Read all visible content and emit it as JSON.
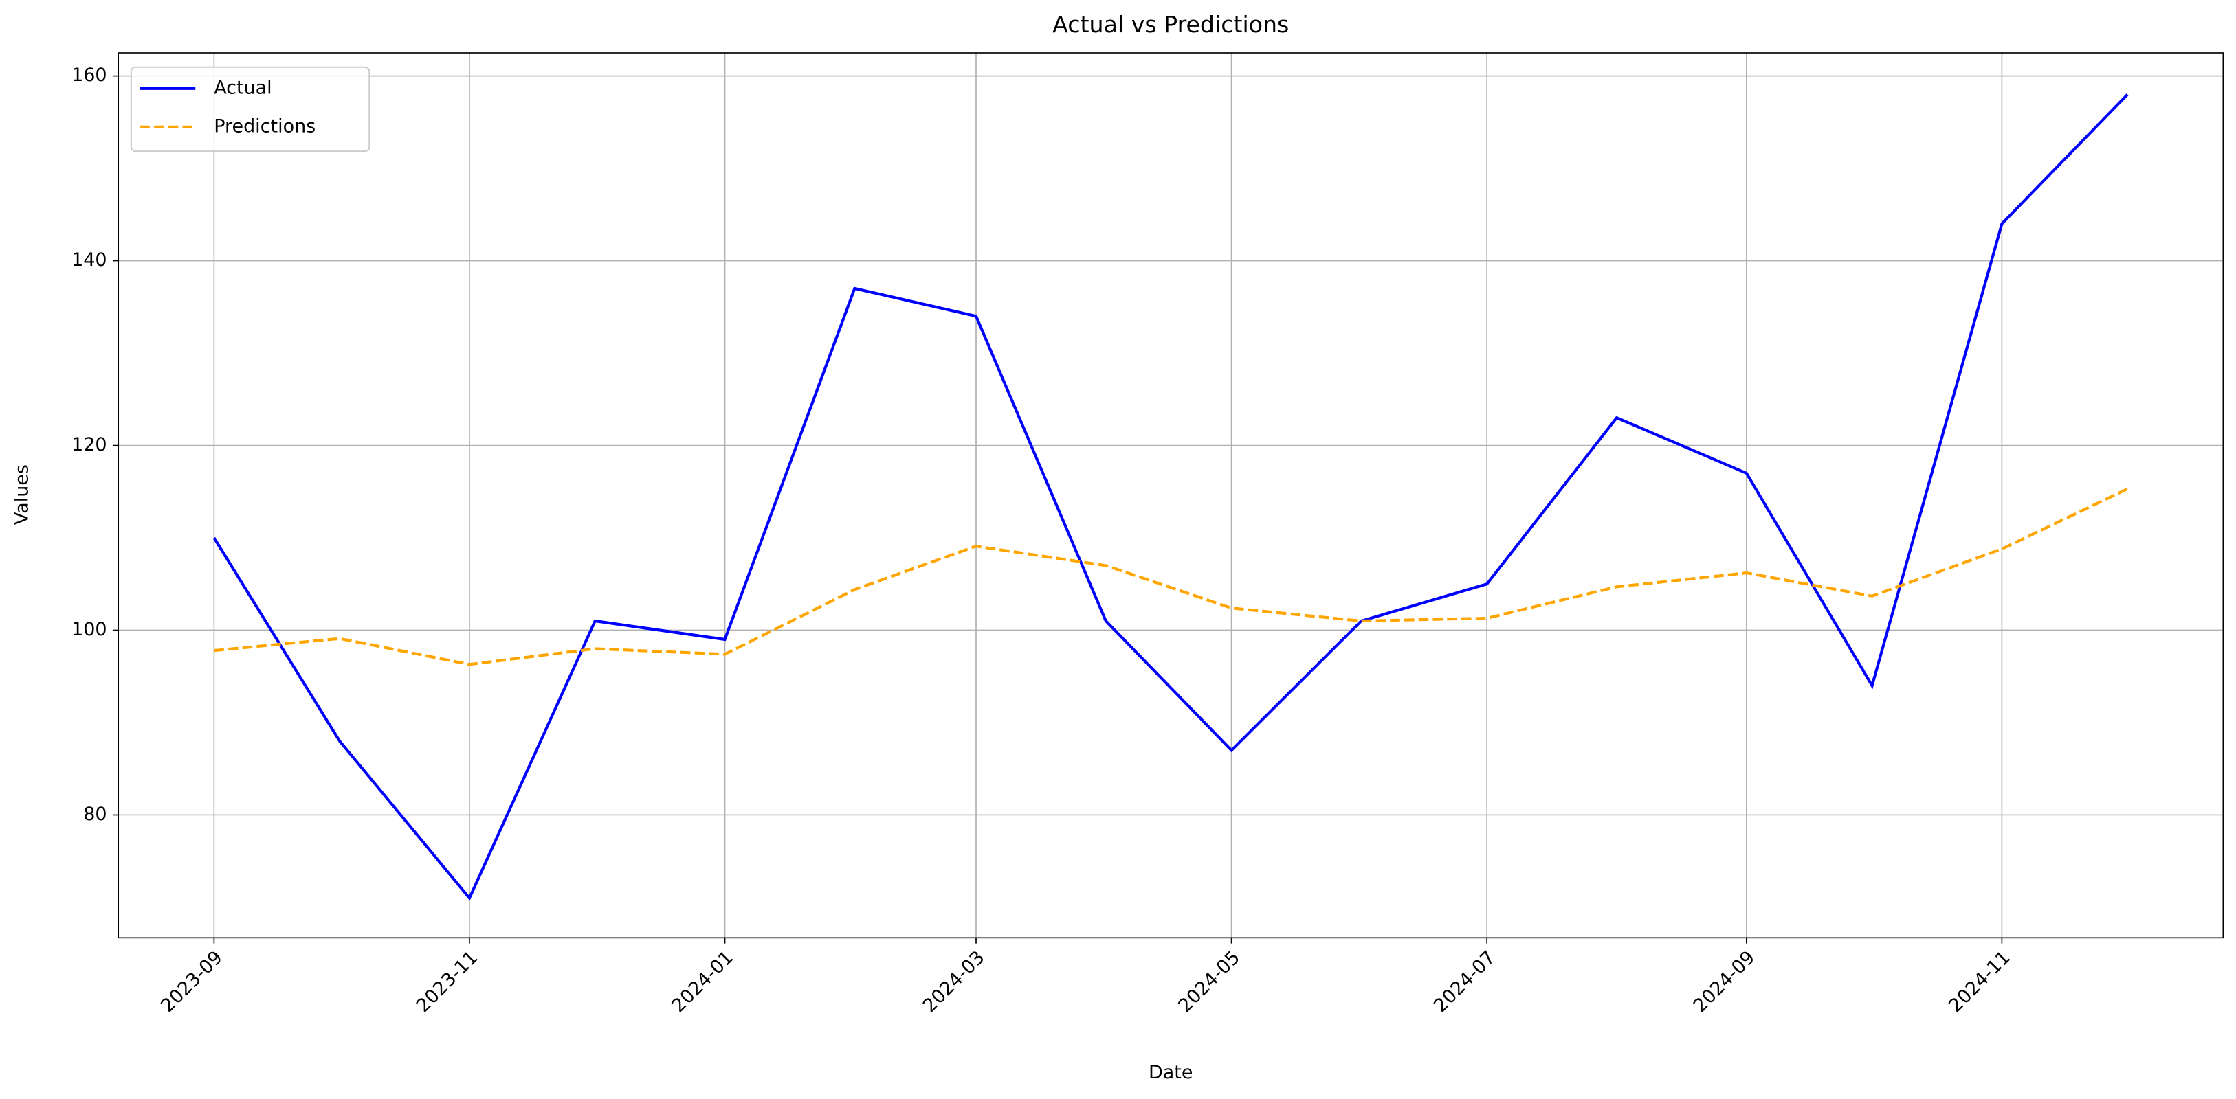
{
  "chart_data": {
    "type": "line",
    "title": "Actual vs Predictions",
    "x_label": "Date",
    "y_label": "Values",
    "x": [
      "2023-09",
      "2023-10",
      "2023-11",
      "2023-12",
      "2024-01",
      "2024-02",
      "2024-03",
      "2024-04",
      "2024-05",
      "2024-06",
      "2024-07",
      "2024-08",
      "2024-09",
      "2024-10",
      "2024-11",
      "2024-12"
    ],
    "series": [
      {
        "name": "Actual",
        "color": "#0000ff",
        "linestyle": "solid",
        "values": [
          110,
          88,
          71,
          101,
          99,
          137,
          134,
          101,
          87,
          101,
          105,
          123,
          117,
          94,
          144,
          158
        ]
      },
      {
        "name": "Predictions",
        "color": "#ffa500",
        "linestyle": "dashed",
        "values": [
          97.8,
          99.1,
          96.3,
          98.0,
          97.4,
          104.4,
          109.1,
          107.0,
          102.4,
          101.0,
          101.3,
          104.7,
          106.2,
          103.7,
          108.8,
          115.3
        ]
      }
    ],
    "xticks": [
      "2023-09",
      "2023-11",
      "2024-01",
      "2024-03",
      "2024-05",
      "2024-07",
      "2024-09",
      "2024-11"
    ],
    "ylim": [
      66.7,
      162.5
    ],
    "yticks": [
      80,
      100,
      120,
      140,
      160
    ],
    "grid": true,
    "legend": "upper left"
  }
}
